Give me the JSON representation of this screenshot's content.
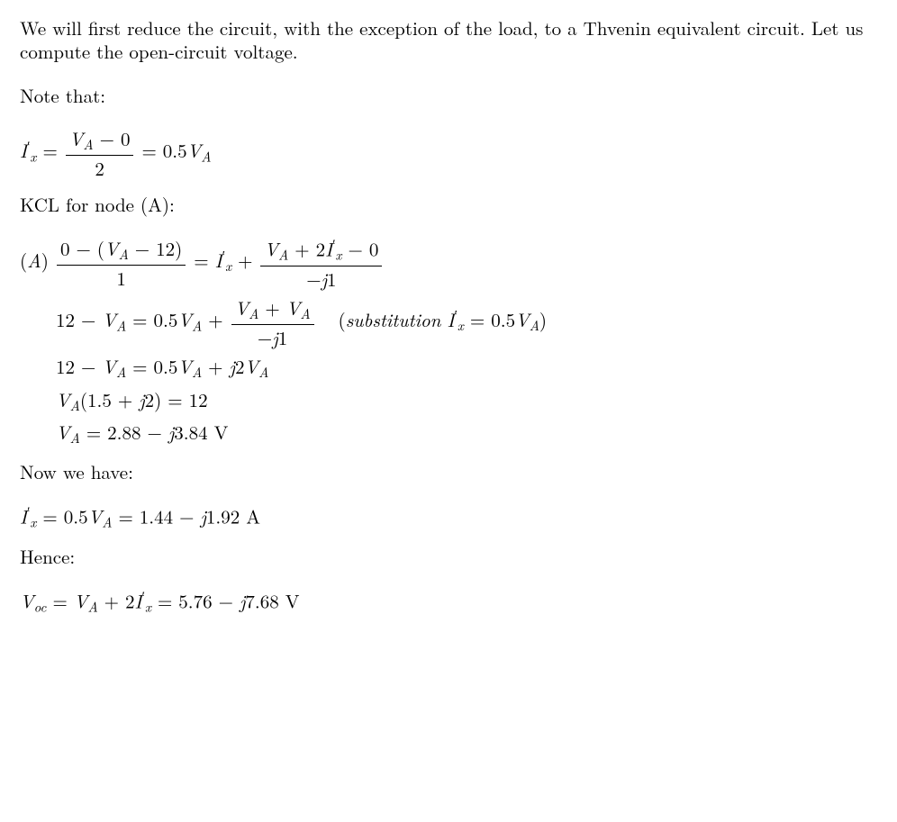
{
  "p1": "We will first reduce the circuit, with the exception of the load, to a Thvenin equivalent circuit. Let us compute the open-circuit voltage.",
  "p2": "Note that:",
  "eq1": {
    "lhs_var": "I",
    "lhs_prime": "′",
    "lhs_sub": "x",
    "frac_num_a": "V",
    "frac_num_a_sub": "A",
    "frac_num_rest": " − 0",
    "frac_den": "2",
    "rhs": "0.5",
    "rhs_var": "V",
    "rhs_sub": "A"
  },
  "p3": "KCL for node (A):",
  "kcl": {
    "label": "A",
    "r1_num_a": "0 − (",
    "r1_num_vA": "V",
    "r1_num_vA_sub": "A",
    "r1_num_b": " − 12)",
    "r1_den": "1",
    "r1_mid": " = ",
    "Ix": "I",
    "Ix_prime": "′",
    "Ix_sub": "x",
    "r1_plus": " + ",
    "r1_num2_a": "V",
    "r1_num2_a_sub": "A",
    "r1_num2_b": " + 2",
    "r1_num2_c": " − 0",
    "r1_den2_a": "−",
    "r1_den2_j": "j",
    "r1_den2_b": "1",
    "r2_lhs_a": "12 − ",
    "r2_lhs_vA": "V",
    "r2_lhs_vA_sub": "A",
    "r2_mid": " = 0.5",
    "r2_frac_num_a": "V",
    "r2_frac_num_a_sub": "A",
    "r2_frac_num_plus": " + ",
    "r2_annot_a": "substitution",
    "r2_annot_b": " = 0.5",
    "r3": "12 − ",
    "r3_mid": " = 0.5",
    "r3_plus": " + ",
    "r3_j": "j",
    "r3_coef": "2",
    "r4_a": "(1.5 + ",
    "r4_j": "j",
    "r4_b": "2) = 12",
    "r5_eq": " = 2.88 − ",
    "r5_j": "j",
    "r5_b": "3.84 V"
  },
  "p4": "Now we have:",
  "eq_ix": {
    "eq": " = 0.5",
    "eq2": " = 1.44 − ",
    "j": "j",
    "tail": "1.92 A"
  },
  "p5": "Hence:",
  "eq_voc": {
    "V": "V",
    "sub": "oc",
    "eq": " = ",
    "plus": " + 2",
    "eq2": " = 5.76 − ",
    "j": "j",
    "tail": "7.68 V"
  }
}
